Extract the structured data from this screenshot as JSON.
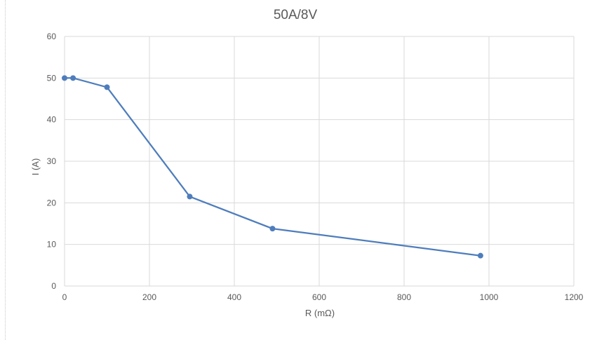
{
  "chart_data": {
    "type": "line",
    "title": "50A/8V",
    "xlabel": "R (mΩ)",
    "ylabel": "I (A)",
    "xlim": [
      0,
      1200
    ],
    "ylim": [
      0,
      60
    ],
    "x_ticks": [
      0,
      200,
      400,
      600,
      800,
      1000,
      1200
    ],
    "y_ticks": [
      0,
      10,
      20,
      30,
      40,
      50,
      60
    ],
    "grid": true,
    "markers": true,
    "series": [
      {
        "x": [
          0,
          20,
          100,
          295,
          490,
          980
        ],
        "y": [
          50,
          50,
          47.8,
          21.5,
          13.8,
          7.3
        ]
      }
    ],
    "colors": {
      "series": "#4e7dbc",
      "grid": "#d9d9d9",
      "text": "#595959"
    }
  }
}
